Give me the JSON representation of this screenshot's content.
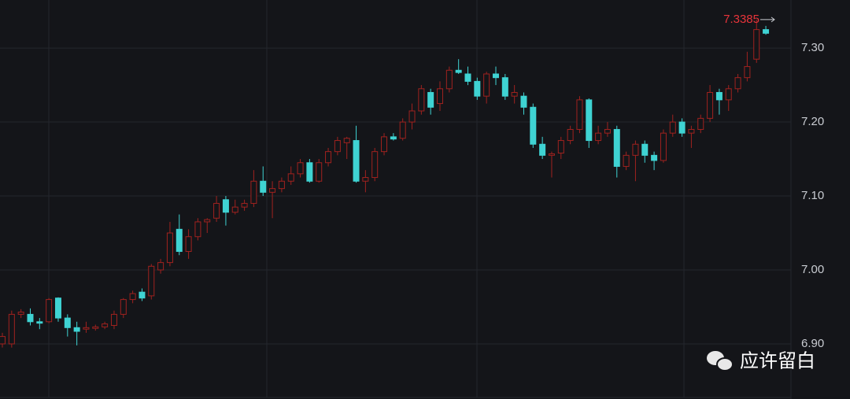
{
  "chart_data": {
    "type": "candlestick",
    "open": [
      6.9,
      6.9,
      6.94,
      6.94,
      6.93,
      6.93,
      6.962,
      6.935,
      6.922,
      6.92,
      6.921,
      6.923,
      6.925,
      6.94,
      6.96,
      6.97,
      6.965,
      7.0,
      7.01,
      7.055,
      7.025,
      7.045,
      7.065,
      7.07,
      7.095,
      7.078,
      7.085,
      7.09,
      7.12,
      7.105,
      7.11,
      7.12,
      7.13,
      7.145,
      7.12,
      7.145,
      7.16,
      7.172,
      7.175,
      7.12,
      7.125,
      7.16,
      7.18,
      7.178,
      7.2,
      7.215,
      7.24,
      7.225,
      7.245,
      7.27,
      7.265,
      7.255,
      7.235,
      7.265,
      7.26,
      7.235,
      7.235,
      7.22,
      7.17,
      7.155,
      7.158,
      7.175,
      7.19,
      7.23,
      7.175,
      7.185,
      7.19,
      7.14,
      7.155,
      7.17,
      7.155,
      7.148,
      7.185,
      7.2,
      7.185,
      7.19,
      7.205,
      7.24,
      7.23,
      7.245,
      7.26,
      7.285,
      7.325
    ],
    "high": [
      6.915,
      6.945,
      6.947,
      6.948,
      6.935,
      6.962,
      6.963,
      6.94,
      6.93,
      6.93,
      6.926,
      6.93,
      6.945,
      6.962,
      6.972,
      6.975,
      7.008,
      7.015,
      7.065,
      7.075,
      7.055,
      7.07,
      7.07,
      7.1,
      7.1,
      7.095,
      7.095,
      7.135,
      7.14,
      7.12,
      7.125,
      7.14,
      7.15,
      7.15,
      7.15,
      7.165,
      7.18,
      7.18,
      7.195,
      7.135,
      7.165,
      7.185,
      7.185,
      7.205,
      7.225,
      7.25,
      7.245,
      7.255,
      7.275,
      7.285,
      7.275,
      7.26,
      7.268,
      7.275,
      7.265,
      7.25,
      7.24,
      7.225,
      7.18,
      7.16,
      7.18,
      7.195,
      7.235,
      7.232,
      7.195,
      7.2,
      7.195,
      7.16,
      7.175,
      7.175,
      7.16,
      7.19,
      7.21,
      7.205,
      7.195,
      7.21,
      7.25,
      7.245,
      7.25,
      7.265,
      7.295,
      7.3385,
      7.33
    ],
    "low": [
      6.895,
      6.895,
      6.935,
      6.925,
      6.92,
      6.928,
      6.93,
      6.91,
      6.898,
      6.915,
      6.918,
      6.92,
      6.92,
      6.935,
      6.955,
      6.958,
      6.96,
      6.995,
      7.005,
      7.02,
      7.015,
      7.04,
      7.05,
      7.065,
      7.06,
      7.075,
      7.08,
      7.085,
      7.1,
      7.07,
      7.105,
      7.115,
      7.125,
      7.118,
      7.118,
      7.14,
      7.155,
      7.15,
      7.118,
      7.105,
      7.12,
      7.155,
      7.175,
      7.175,
      7.19,
      7.21,
      7.21,
      7.215,
      7.24,
      7.265,
      7.25,
      7.23,
      7.225,
      7.25,
      7.23,
      7.225,
      7.21,
      7.165,
      7.15,
      7.125,
      7.15,
      7.17,
      7.185,
      7.165,
      7.17,
      7.18,
      7.125,
      7.135,
      7.12,
      7.145,
      7.135,
      7.145,
      7.18,
      7.18,
      7.165,
      7.185,
      7.2,
      7.21,
      7.215,
      7.24,
      7.255,
      7.28,
      7.318
    ],
    "close": [
      6.91,
      6.94,
      6.943,
      6.93,
      6.928,
      6.96,
      6.935,
      6.922,
      6.917,
      6.922,
      6.923,
      6.927,
      6.94,
      6.96,
      6.968,
      6.962,
      7.005,
      7.01,
      7.05,
      7.025,
      7.045,
      7.065,
      7.068,
      7.09,
      7.078,
      7.085,
      7.09,
      7.12,
      7.105,
      7.11,
      7.12,
      7.13,
      7.145,
      7.12,
      7.145,
      7.16,
      7.175,
      7.178,
      7.12,
      7.125,
      7.16,
      7.18,
      7.177,
      7.2,
      7.215,
      7.245,
      7.22,
      7.245,
      7.27,
      7.267,
      7.255,
      7.235,
      7.265,
      7.26,
      7.235,
      7.24,
      7.22,
      7.17,
      7.155,
      7.157,
      7.175,
      7.19,
      7.23,
      7.175,
      7.185,
      7.19,
      7.14,
      7.155,
      7.17,
      7.155,
      7.148,
      7.185,
      7.2,
      7.185,
      7.19,
      7.205,
      7.24,
      7.23,
      7.245,
      7.26,
      7.275,
      7.325,
      7.32
    ],
    "up_color": "#a0221f",
    "down_color": "#3fd3d3",
    "ylim": [
      6.8255,
      7.365
    ],
    "yticks": [
      {
        "value": 6.9,
        "label": "6.90"
      },
      {
        "value": 7.0,
        "label": "7.00"
      },
      {
        "value": 7.1,
        "label": "7.10"
      },
      {
        "value": 7.2,
        "label": "7.20"
      },
      {
        "value": 7.3,
        "label": "7.30"
      }
    ],
    "grid": true,
    "high_marker": 7.3385,
    "high_marker_color": "#e8343a",
    "watermark": "应许留白"
  }
}
